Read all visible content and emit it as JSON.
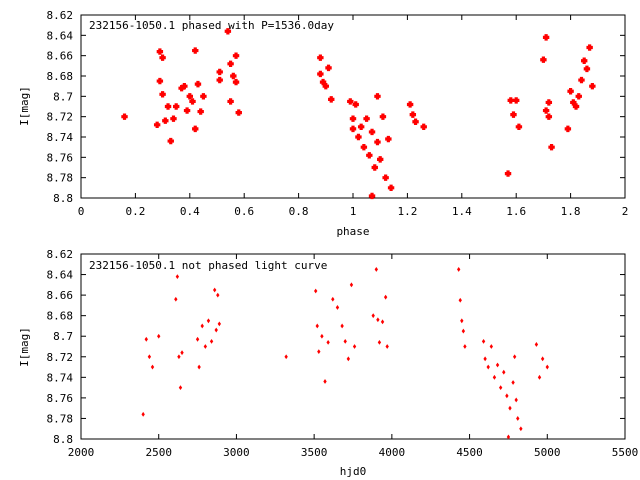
{
  "chart_data": [
    {
      "type": "scatter",
      "title": "232156-1050.1 phased with P=1536.0day",
      "xlabel": "phase",
      "ylabel": "I[mag]",
      "xlim": [
        0,
        2
      ],
      "ylim": [
        8.8,
        8.62
      ],
      "y_inverted": true,
      "grid": false,
      "marker_color": "#ff0000",
      "marker": "filled-cross",
      "xticks": [
        0,
        0.2,
        0.4,
        0.6,
        0.8,
        1,
        1.2,
        1.4,
        1.6,
        1.8,
        2
      ],
      "yticks": [
        8.62,
        8.64,
        8.66,
        8.68,
        8.7,
        8.72,
        8.74,
        8.76,
        8.78,
        8.8
      ],
      "points": [
        [
          0.16,
          8.72
        ],
        [
          0.28,
          8.728
        ],
        [
          0.29,
          8.685
        ],
        [
          0.29,
          8.656
        ],
        [
          0.3,
          8.662
        ],
        [
          0.3,
          8.698
        ],
        [
          0.31,
          8.724
        ],
        [
          0.32,
          8.71
        ],
        [
          0.33,
          8.744
        ],
        [
          0.34,
          8.722
        ],
        [
          0.35,
          8.71
        ],
        [
          0.37,
          8.692
        ],
        [
          0.38,
          8.69
        ],
        [
          0.39,
          8.714
        ],
        [
          0.4,
          8.7
        ],
        [
          0.41,
          8.705
        ],
        [
          0.42,
          8.732
        ],
        [
          0.42,
          8.655
        ],
        [
          0.43,
          8.688
        ],
        [
          0.44,
          8.715
        ],
        [
          0.45,
          8.7
        ],
        [
          0.51,
          8.676
        ],
        [
          0.51,
          8.684
        ],
        [
          0.54,
          8.636
        ],
        [
          0.55,
          8.668
        ],
        [
          0.55,
          8.705
        ],
        [
          0.56,
          8.68
        ],
        [
          0.57,
          8.686
        ],
        [
          0.57,
          8.66
        ],
        [
          0.58,
          8.716
        ],
        [
          0.88,
          8.662
        ],
        [
          0.88,
          8.678
        ],
        [
          0.89,
          8.686
        ],
        [
          0.9,
          8.69
        ],
        [
          0.91,
          8.672
        ],
        [
          0.92,
          8.703
        ],
        [
          0.99,
          8.705
        ],
        [
          1.0,
          8.722
        ],
        [
          1.0,
          8.732
        ],
        [
          1.01,
          8.708
        ],
        [
          1.02,
          8.74
        ],
        [
          1.03,
          8.73
        ],
        [
          1.04,
          8.75
        ],
        [
          1.05,
          8.722
        ],
        [
          1.06,
          8.758
        ],
        [
          1.07,
          8.735
        ],
        [
          1.07,
          8.798
        ],
        [
          1.08,
          8.77
        ],
        [
          1.09,
          8.745
        ],
        [
          1.09,
          8.7
        ],
        [
          1.1,
          8.762
        ],
        [
          1.11,
          8.72
        ],
        [
          1.12,
          8.78
        ],
        [
          1.13,
          8.742
        ],
        [
          1.14,
          8.79
        ],
        [
          1.21,
          8.708
        ],
        [
          1.22,
          8.718
        ],
        [
          1.23,
          8.725
        ],
        [
          1.26,
          8.73
        ],
        [
          1.57,
          8.776
        ],
        [
          1.58,
          8.704
        ],
        [
          1.59,
          8.718
        ],
        [
          1.6,
          8.704
        ],
        [
          1.61,
          8.73
        ],
        [
          1.7,
          8.664
        ],
        [
          1.71,
          8.642
        ],
        [
          1.71,
          8.714
        ],
        [
          1.72,
          8.72
        ],
        [
          1.73,
          8.75
        ],
        [
          1.72,
          8.706
        ],
        [
          1.79,
          8.732
        ],
        [
          1.8,
          8.695
        ],
        [
          1.81,
          8.706
        ],
        [
          1.82,
          8.71
        ],
        [
          1.83,
          8.7
        ],
        [
          1.84,
          8.684
        ],
        [
          1.85,
          8.665
        ],
        [
          1.86,
          8.673
        ],
        [
          1.87,
          8.652
        ],
        [
          1.88,
          8.69
        ]
      ]
    },
    {
      "type": "scatter",
      "title": "232156-1050.1 not phased light curve",
      "xlabel": "hjd0",
      "ylabel": "I[mag]",
      "xlim": [
        2000,
        5500
      ],
      "ylim": [
        8.8,
        8.62
      ],
      "y_inverted": true,
      "grid": false,
      "marker_color": "#ff0000",
      "marker": "small-diamond",
      "xticks": [
        2000,
        2500,
        3000,
        3500,
        4000,
        4500,
        5000,
        5500
      ],
      "yticks": [
        8.62,
        8.64,
        8.66,
        8.68,
        8.7,
        8.72,
        8.74,
        8.76,
        8.78,
        8.8
      ],
      "points": [
        [
          2400,
          8.776
        ],
        [
          2420,
          8.703
        ],
        [
          2440,
          8.72
        ],
        [
          2460,
          8.73
        ],
        [
          2500,
          8.7
        ],
        [
          2610,
          8.664
        ],
        [
          2620,
          8.642
        ],
        [
          2630,
          8.72
        ],
        [
          2640,
          8.75
        ],
        [
          2650,
          8.716
        ],
        [
          2750,
          8.703
        ],
        [
          2760,
          8.73
        ],
        [
          2780,
          8.69
        ],
        [
          2800,
          8.71
        ],
        [
          2820,
          8.685
        ],
        [
          2840,
          8.705
        ],
        [
          2860,
          8.655
        ],
        [
          2870,
          8.694
        ],
        [
          2880,
          8.66
        ],
        [
          2890,
          8.688
        ],
        [
          3320,
          8.72
        ],
        [
          3510,
          8.656
        ],
        [
          3520,
          8.69
        ],
        [
          3530,
          8.715
        ],
        [
          3550,
          8.7
        ],
        [
          3570,
          8.744
        ],
        [
          3590,
          8.706
        ],
        [
          3620,
          8.664
        ],
        [
          3650,
          8.672
        ],
        [
          3680,
          8.69
        ],
        [
          3700,
          8.705
        ],
        [
          3720,
          8.722
        ],
        [
          3740,
          8.65
        ],
        [
          3760,
          8.71
        ],
        [
          3880,
          8.68
        ],
        [
          3900,
          8.635
        ],
        [
          3910,
          8.684
        ],
        [
          3920,
          8.706
        ],
        [
          3940,
          8.686
        ],
        [
          3960,
          8.662
        ],
        [
          3970,
          8.71
        ],
        [
          4430,
          8.635
        ],
        [
          4440,
          8.665
        ],
        [
          4450,
          8.685
        ],
        [
          4460,
          8.695
        ],
        [
          4470,
          8.71
        ],
        [
          4590,
          8.705
        ],
        [
          4600,
          8.722
        ],
        [
          4620,
          8.73
        ],
        [
          4640,
          8.71
        ],
        [
          4660,
          8.74
        ],
        [
          4680,
          8.728
        ],
        [
          4700,
          8.75
        ],
        [
          4720,
          8.735
        ],
        [
          4740,
          8.758
        ],
        [
          4750,
          8.798
        ],
        [
          4760,
          8.77
        ],
        [
          4780,
          8.745
        ],
        [
          4790,
          8.72
        ],
        [
          4800,
          8.762
        ],
        [
          4810,
          8.78
        ],
        [
          4830,
          8.79
        ],
        [
          4930,
          8.708
        ],
        [
          4950,
          8.74
        ],
        [
          4970,
          8.722
        ],
        [
          5000,
          8.73
        ]
      ]
    }
  ]
}
